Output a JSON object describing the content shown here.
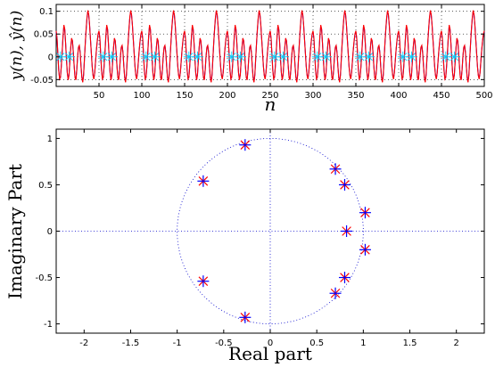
{
  "chart_data": [
    {
      "type": "line",
      "title": "",
      "xlabel": "n",
      "ylabel": "y(n), ŷ(n)",
      "xlim": [
        0,
        500
      ],
      "ylim": [
        -0.065,
        0.115
      ],
      "xticks": [
        50,
        100,
        150,
        200,
        250,
        300,
        350,
        400,
        450,
        500
      ],
      "yticks": [
        -0.05,
        0,
        0.05,
        0.1
      ],
      "ytick_labels": [
        "-0.05",
        "0",
        "0.05",
        "0.1"
      ],
      "grid": "dotted",
      "period": 50,
      "series": [
        {
          "color": "#0000ff",
          "one_period_values": [
            0.055,
            0.04,
            0.005,
            -0.03,
            -0.048,
            -0.045,
            -0.02,
            0.01,
            0.045,
            0.068,
            0.06,
            0.03,
            -0.005,
            -0.035,
            -0.05,
            -0.04,
            -0.01,
            0.02,
            0.04,
            0.035,
            0.01,
            -0.02,
            -0.045,
            -0.05,
            -0.03,
            0.0,
            0.02,
            0.025,
            0.01,
            -0.02,
            -0.045,
            -0.055,
            -0.04,
            -0.005,
            0.03,
            0.06,
            0.085,
            0.1,
            0.092,
            0.07,
            0.04,
            0.01,
            -0.02,
            -0.04,
            -0.048,
            -0.035,
            -0.01,
            0.015,
            0.035,
            0.05
          ]
        },
        {
          "color": "#ff0000",
          "one_period_values": [
            0.057,
            0.041,
            0.004,
            -0.031,
            -0.049,
            -0.045,
            -0.019,
            0.011,
            0.046,
            0.07,
            0.061,
            0.03,
            -0.006,
            -0.036,
            -0.051,
            -0.04,
            -0.009,
            0.021,
            0.041,
            0.035,
            0.009,
            -0.021,
            -0.046,
            -0.051,
            -0.03,
            0.001,
            0.021,
            0.025,
            0.009,
            -0.021,
            -0.046,
            -0.056,
            -0.04,
            -0.004,
            0.031,
            0.062,
            0.087,
            0.102,
            0.093,
            0.07,
            0.039,
            0.009,
            -0.021,
            -0.041,
            -0.049,
            -0.035,
            -0.009,
            0.016,
            0.036,
            0.051
          ]
        }
      ],
      "markers": {
        "color": "#00ccff",
        "shape": "asterisk",
        "y": 0,
        "x": [
          5,
          15,
          55,
          65,
          105,
          115,
          155,
          165,
          205,
          215,
          255,
          265,
          305,
          315,
          355,
          365,
          405,
          415,
          455,
          465
        ]
      }
    },
    {
      "type": "scatter",
      "title": "",
      "xlabel": "Real part",
      "ylabel": "Imaginary Part",
      "xlim": [
        -2.3,
        2.3
      ],
      "ylim": [
        -1.1,
        1.1
      ],
      "xticks": [
        -2,
        -1.5,
        -1,
        -0.5,
        0,
        0.5,
        1,
        1.5,
        2
      ],
      "xtick_labels": [
        "-2",
        "-1.5",
        "-1",
        "-0.5",
        "0",
        "0.5",
        "1",
        "1.5",
        "2"
      ],
      "yticks": [
        -1,
        -0.5,
        0,
        0.5,
        1
      ],
      "ytick_labels": [
        "-1",
        "-0.5",
        "0",
        "0.5",
        "1"
      ],
      "reference": "dotted unit circle and dotted real/imaginary axes",
      "series": [
        {
          "marker": "x",
          "color": "#ff0000",
          "points": [
            [
              -0.27,
              0.93
            ],
            [
              -0.27,
              -0.93
            ],
            [
              -0.72,
              0.54
            ],
            [
              -0.72,
              -0.54
            ],
            [
              0.7,
              0.67
            ],
            [
              0.7,
              -0.67
            ],
            [
              0.8,
              0.5
            ],
            [
              0.8,
              -0.5
            ],
            [
              0.82,
              0.0
            ],
            [
              1.02,
              0.2
            ],
            [
              1.02,
              -0.2
            ]
          ]
        },
        {
          "marker": "+",
          "color": "#0000ff",
          "points": [
            [
              -0.27,
              0.93
            ],
            [
              -0.27,
              -0.93
            ],
            [
              -0.72,
              0.54
            ],
            [
              -0.72,
              -0.54
            ],
            [
              0.7,
              0.67
            ],
            [
              0.7,
              -0.67
            ],
            [
              0.8,
              0.5
            ],
            [
              0.8,
              -0.5
            ],
            [
              0.82,
              0.0
            ],
            [
              1.02,
              0.2
            ],
            [
              1.02,
              -0.2
            ]
          ]
        }
      ]
    }
  ]
}
